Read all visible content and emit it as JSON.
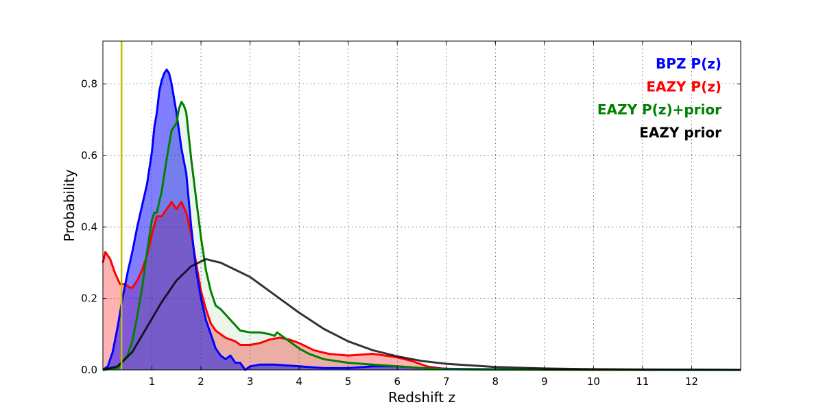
{
  "chart_data": {
    "type": "area",
    "xlabel": "Redshift z",
    "ylabel": "Probability",
    "xlim": [
      0,
      13
    ],
    "ylim": [
      0,
      0.92
    ],
    "x_ticks": [
      1,
      2,
      3,
      4,
      5,
      6,
      7,
      8,
      9,
      10,
      11,
      12
    ],
    "y_ticks": [
      0.0,
      0.2,
      0.4,
      0.6,
      0.8
    ],
    "y_tick_labels": [
      "0.0",
      "0.2",
      "0.4",
      "0.6",
      "0.8"
    ],
    "grid": true,
    "legend_placement": "top-right",
    "vertical_line": {
      "x": 0.38,
      "color": "#bfbf00"
    },
    "series": [
      {
        "name": "BPZ P(z)",
        "color": "#0000ff",
        "fill": "#0000ff",
        "fill_opacity": 0.5,
        "x": [
          0,
          0.1,
          0.2,
          0.3,
          0.4,
          0.5,
          0.6,
          0.7,
          0.8,
          0.9,
          1.0,
          1.05,
          1.1,
          1.15,
          1.2,
          1.25,
          1.3,
          1.35,
          1.4,
          1.5,
          1.6,
          1.7,
          1.8,
          1.9,
          2.0,
          2.1,
          2.2,
          2.3,
          2.4,
          2.5,
          2.6,
          2.7,
          2.8,
          2.9,
          3.0,
          3.2,
          3.5,
          4.0,
          4.5,
          5.0,
          5.5,
          6.0,
          6.5,
          7.0,
          8.0,
          10.0,
          13.0
        ],
        "values": [
          0,
          0.01,
          0.05,
          0.12,
          0.2,
          0.27,
          0.33,
          0.4,
          0.46,
          0.52,
          0.61,
          0.68,
          0.72,
          0.78,
          0.81,
          0.83,
          0.84,
          0.83,
          0.8,
          0.72,
          0.62,
          0.55,
          0.4,
          0.28,
          0.2,
          0.14,
          0.1,
          0.06,
          0.04,
          0.03,
          0.04,
          0.02,
          0.02,
          0.0,
          0.01,
          0.015,
          0.015,
          0.01,
          0.005,
          0.005,
          0.01,
          0.01,
          0.005,
          0.003,
          0.002,
          0.001,
          0
        ]
      },
      {
        "name": "EAZY P(z)",
        "color": "#ff0000",
        "fill": "#ff0000",
        "fill_opacity": 0.3,
        "x": [
          0,
          0.05,
          0.15,
          0.25,
          0.35,
          0.45,
          0.55,
          0.6,
          0.7,
          0.8,
          0.9,
          1.0,
          1.1,
          1.2,
          1.3,
          1.4,
          1.5,
          1.6,
          1.7,
          1.8,
          1.9,
          2.0,
          2.1,
          2.2,
          2.3,
          2.5,
          2.7,
          2.8,
          3.0,
          3.2,
          3.4,
          3.6,
          3.8,
          4.0,
          4.3,
          4.6,
          5.0,
          5.5,
          6.0,
          6.3,
          6.6,
          6.9,
          7.2,
          8.0,
          10.0,
          13.0
        ],
        "values": [
          0.3,
          0.33,
          0.31,
          0.27,
          0.24,
          0.24,
          0.23,
          0.23,
          0.25,
          0.28,
          0.32,
          0.38,
          0.43,
          0.43,
          0.45,
          0.47,
          0.45,
          0.47,
          0.44,
          0.38,
          0.3,
          0.22,
          0.17,
          0.13,
          0.11,
          0.09,
          0.08,
          0.07,
          0.07,
          0.075,
          0.085,
          0.09,
          0.085,
          0.075,
          0.055,
          0.045,
          0.04,
          0.045,
          0.035,
          0.025,
          0.01,
          0.004,
          0.002,
          0.001,
          0,
          0
        ]
      },
      {
        "name": "EAZY P(z)+prior",
        "color": "#008000",
        "fill": "#008000",
        "fill_opacity": 0.08,
        "x": [
          0,
          0.3,
          0.5,
          0.6,
          0.7,
          0.8,
          0.9,
          1.0,
          1.05,
          1.1,
          1.2,
          1.3,
          1.4,
          1.5,
          1.55,
          1.6,
          1.65,
          1.7,
          1.8,
          1.9,
          2.0,
          2.1,
          2.2,
          2.3,
          2.4,
          2.6,
          2.8,
          3.0,
          3.2,
          3.4,
          3.5,
          3.55,
          3.6,
          3.7,
          3.8,
          4.0,
          4.2,
          4.5,
          5.0,
          5.5,
          6.0,
          6.5,
          7.0,
          8.0,
          13.0
        ],
        "values": [
          0,
          0.005,
          0.04,
          0.08,
          0.15,
          0.23,
          0.33,
          0.42,
          0.44,
          0.44,
          0.5,
          0.59,
          0.67,
          0.69,
          0.73,
          0.75,
          0.74,
          0.72,
          0.59,
          0.48,
          0.37,
          0.28,
          0.22,
          0.18,
          0.17,
          0.14,
          0.11,
          0.105,
          0.105,
          0.1,
          0.095,
          0.105,
          0.1,
          0.09,
          0.08,
          0.06,
          0.045,
          0.03,
          0.02,
          0.015,
          0.01,
          0.005,
          0.002,
          0.001,
          0
        ]
      },
      {
        "name": "EAZY prior",
        "color": "#000000",
        "fill": "none",
        "fill_opacity": 0,
        "x": [
          0,
          0.3,
          0.6,
          0.9,
          1.2,
          1.5,
          1.8,
          2.1,
          2.4,
          2.7,
          3.0,
          3.5,
          4.0,
          4.5,
          5.0,
          5.5,
          6.0,
          6.5,
          7.0,
          8.0,
          9.0,
          10.0,
          11.0,
          12.0,
          13.0
        ],
        "values": [
          0,
          0.01,
          0.05,
          0.12,
          0.19,
          0.25,
          0.29,
          0.31,
          0.3,
          0.28,
          0.26,
          0.21,
          0.16,
          0.115,
          0.08,
          0.055,
          0.038,
          0.025,
          0.017,
          0.008,
          0.004,
          0.002,
          0.001,
          0.0005,
          0
        ]
      }
    ]
  }
}
